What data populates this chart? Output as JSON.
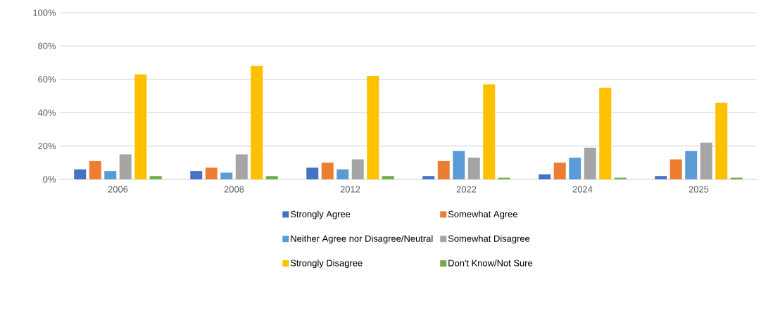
{
  "chart_data": {
    "type": "bar",
    "categories": [
      "2006",
      "2008",
      "2012",
      "2022",
      "2024",
      "2025"
    ],
    "series": [
      {
        "name": "Strongly Agree",
        "color": "#4472c4",
        "values": [
          6,
          5,
          7,
          2,
          3,
          2
        ]
      },
      {
        "name": "Somewhat Agree",
        "color": "#ed7d31",
        "values": [
          11,
          7,
          10,
          11,
          10,
          12
        ]
      },
      {
        "name": "Neither Agree nor Disagree/Neutral",
        "color": "#5b9bd5",
        "values": [
          5,
          4,
          6,
          17,
          13,
          17
        ]
      },
      {
        "name": "Somewhat Disagree",
        "color": "#a5a5a5",
        "values": [
          15,
          15,
          12,
          13,
          19,
          22
        ]
      },
      {
        "name": "Strongly Disagree",
        "color": "#ffc000",
        "values": [
          63,
          68,
          62,
          57,
          55,
          46
        ]
      },
      {
        "name": "Don't Know/Not Sure",
        "color": "#70ad47",
        "values": [
          2,
          2,
          2,
          1,
          1,
          1
        ]
      }
    ],
    "ylim": [
      0,
      100
    ],
    "yticks": [
      {
        "value": 0,
        "label": "0%"
      },
      {
        "value": 20,
        "label": "20%"
      },
      {
        "value": 40,
        "label": "40%"
      },
      {
        "value": 60,
        "label": "60%"
      },
      {
        "value": 80,
        "label": "80%"
      },
      {
        "value": 100,
        "label": "100%"
      }
    ],
    "grid": "y",
    "legend": "bottom"
  }
}
